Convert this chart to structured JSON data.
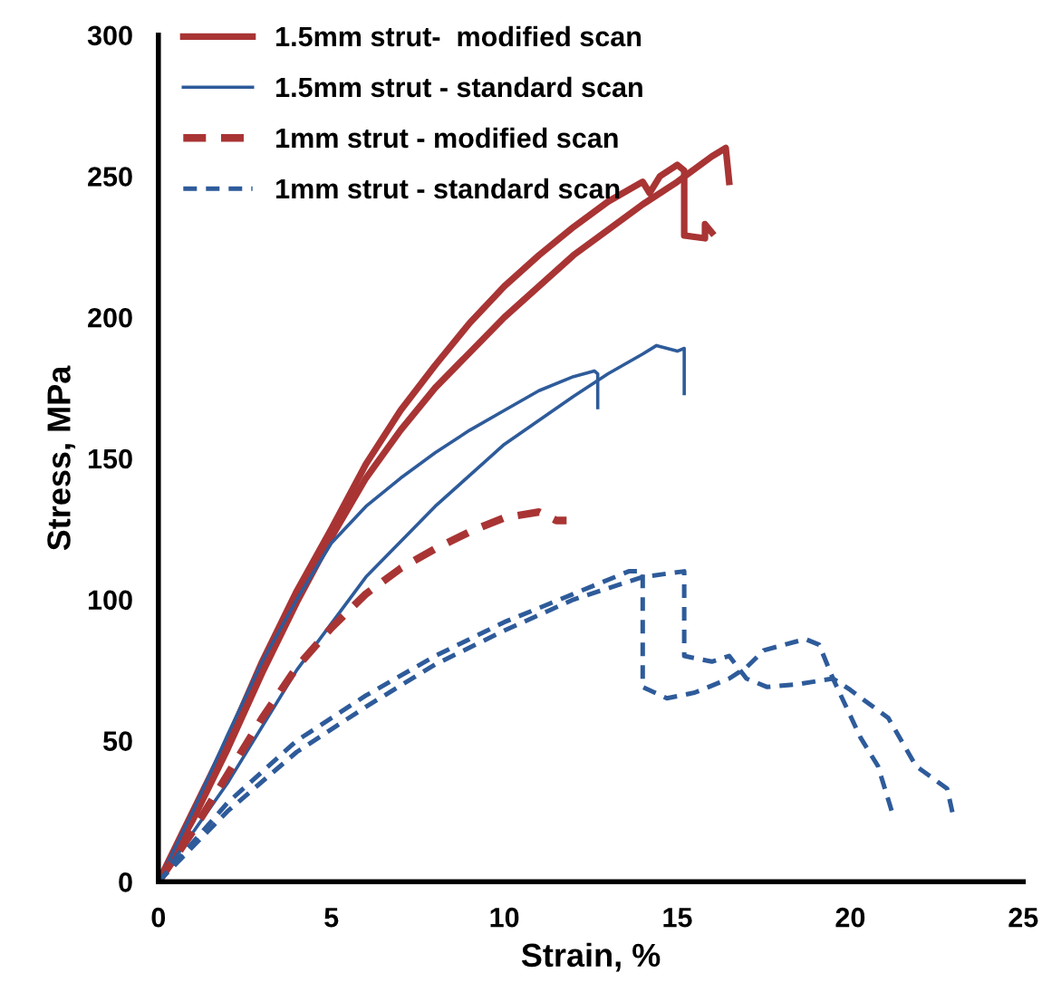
{
  "chart_data": {
    "type": "line",
    "xlabel": "Strain, %",
    "ylabel": "Stress, MPa",
    "xlim": [
      0,
      25
    ],
    "xticks": [
      0,
      5,
      10,
      15,
      20,
      25
    ],
    "ylim": [
      0,
      300
    ],
    "yticks": [
      0,
      50,
      100,
      150,
      200,
      250,
      300
    ],
    "grid": false,
    "legend": "top left",
    "marker": "none",
    "series": [
      {
        "name": "1.5mm strut-  modified scan",
        "color": "#a93434",
        "line_style": "solid",
        "x": [
          0,
          1,
          2,
          3,
          4,
          5,
          6,
          7,
          8,
          9,
          10,
          11,
          12,
          13,
          14,
          14.2,
          14.5,
          15,
          15.2,
          15.2,
          15.8,
          15.8,
          16
        ],
        "values": [
          0,
          25,
          50,
          78,
          103,
          125,
          148,
          167,
          183,
          198,
          211,
          222,
          232,
          241,
          248,
          244,
          250,
          254,
          252,
          229,
          228,
          233,
          230
        ]
      },
      {
        "color": "#a93434",
        "line_style": "solid",
        "x": [
          0,
          1,
          2,
          3,
          4,
          5,
          6,
          7,
          8,
          10,
          12,
          14,
          15,
          16,
          16.4,
          16.5
        ],
        "values": [
          0,
          22,
          47,
          74,
          99,
          122,
          143,
          160,
          175,
          200,
          222,
          240,
          248,
          257,
          260,
          248
        ]
      },
      {
        "name": "1.5mm strut - standard scan",
        "color": "#2e5b9a",
        "line_style": "solid",
        "x": [
          0,
          1,
          2,
          3,
          4,
          5,
          6,
          7,
          8,
          9,
          10,
          11,
          12,
          12.6,
          12.7,
          12.7
        ],
        "values": [
          0,
          25,
          52,
          78,
          100,
          120,
          133,
          143,
          152,
          160,
          167,
          174,
          179,
          181,
          180,
          168
        ]
      },
      {
        "color": "#2e5b9a",
        "line_style": "solid",
        "x": [
          0,
          2,
          4,
          6,
          8,
          10,
          12,
          13,
          14,
          14.4,
          15,
          15.2,
          15.2
        ],
        "values": [
          0,
          35,
          75,
          108,
          133,
          155,
          172,
          180,
          187,
          190,
          188,
          189,
          173
        ]
      },
      {
        "name": "1mm strut - modified scan",
        "color": "#a93434",
        "line_style": "dashed",
        "x": [
          0,
          1,
          2,
          3,
          4,
          5,
          6,
          7,
          8,
          9,
          10,
          11,
          11.5,
          11.8
        ],
        "values": [
          0,
          18,
          38,
          58,
          76,
          90,
          102,
          111,
          118,
          124,
          129,
          131,
          128,
          128
        ]
      },
      {
        "name": "1mm strut - standard scan",
        "color": "#2e5b9a",
        "line_style": "dashed",
        "x": [
          0,
          2,
          4,
          6,
          8,
          10,
          12,
          13.6,
          14,
          14,
          14.7,
          15.5,
          16.5,
          17,
          17.5,
          18.7,
          19.1,
          19.5,
          20.3,
          20.8,
          21.2
        ],
        "values": [
          0,
          28,
          50,
          66,
          80,
          92,
          102,
          110,
          110,
          69,
          65,
          67,
          72,
          76,
          82,
          86,
          84,
          72,
          51,
          41,
          25
        ]
      },
      {
        "color": "#2e5b9a",
        "line_style": "dashed",
        "x": [
          0,
          2,
          4,
          6,
          8,
          10,
          12,
          14,
          15.2,
          15.2,
          16,
          16.5,
          17,
          17.6,
          18.5,
          19.5,
          20,
          21.1,
          21.9,
          22.8,
          23
        ],
        "values": [
          0,
          25,
          46,
          62,
          77,
          89,
          100,
          108,
          110,
          80,
          78,
          80,
          72,
          69,
          70,
          72,
          68,
          58,
          41,
          33,
          22
        ]
      }
    ]
  }
}
